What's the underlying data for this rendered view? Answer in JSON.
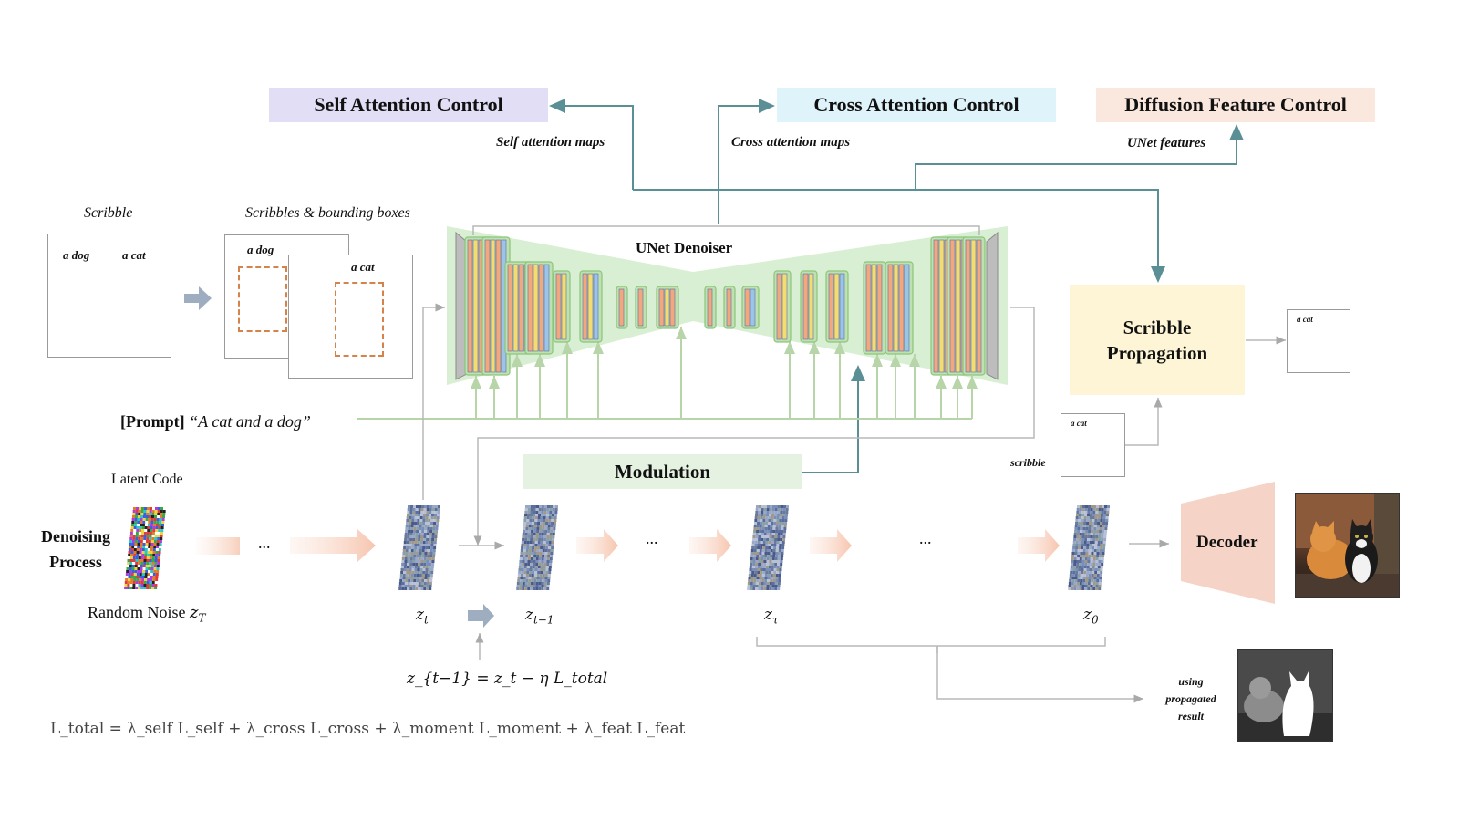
{
  "controls": {
    "self_attention": "Self Attention Control",
    "cross_attention": "Cross Attention Control",
    "diffusion_feature": "Diffusion Feature Control"
  },
  "edge_labels": {
    "self_maps": "Self attention maps",
    "cross_maps": "Cross attention maps",
    "unet_features": "UNet features"
  },
  "inputs": {
    "scribble_title": "Scribble",
    "boxes_title": "Scribbles & bounding boxes",
    "a_dog": "a dog",
    "a_cat": "a cat"
  },
  "unet": {
    "title": "UNet Denoiser"
  },
  "prompt": {
    "tag": "[Prompt]",
    "text": "“A cat and a dog”"
  },
  "propagation": {
    "title": "Scribble Propagation",
    "out_label": "a cat",
    "in_label": "a cat",
    "scribble_word": "scribble"
  },
  "modulation": {
    "title": "Modulation"
  },
  "process": {
    "latent_code": "Latent Code",
    "denoising": "Denoising Process",
    "random_noise": "Random Noise",
    "ellipsis": "...",
    "decoder": "Decoder",
    "using_propagated": "using propagated result"
  },
  "latents": {
    "zT": "T",
    "zt": "t",
    "zt1": "t−1",
    "ztau": "τ",
    "z0": "0"
  },
  "update_rule": "z_{t−1} = z_t − η L_total",
  "loss": "L_total = λ_self L_self + λ_cross L_cross + λ_moment L_moment + λ_feat L_feat",
  "colors": {
    "self_box": "#e1def6",
    "cross_box": "#dff4fa",
    "feat_box": "#fae8de",
    "prop_box": "#fdf5d6",
    "mod_box": "#e5f1e1",
    "unet_bg": "#d9efd3",
    "arrow_teal": "#5b8f96"
  }
}
